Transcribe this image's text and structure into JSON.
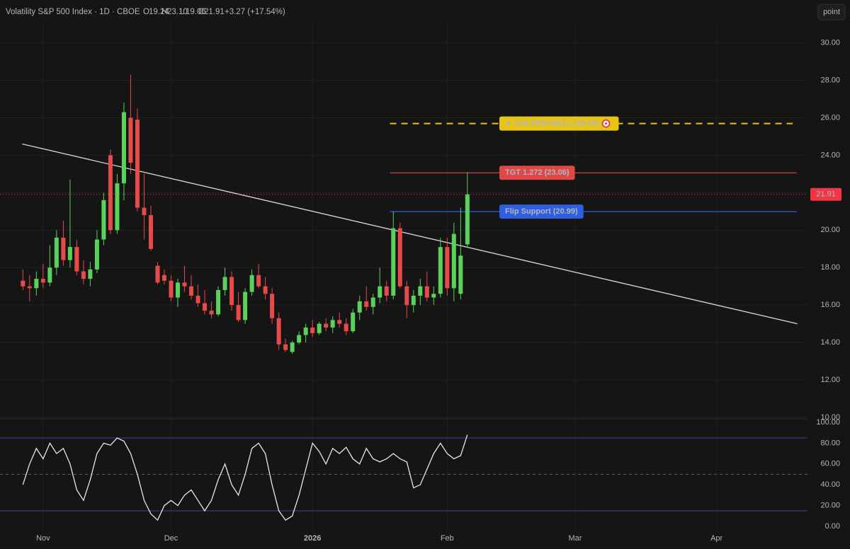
{
  "chart_data": {
    "type": "candlestick",
    "title": "Volatility S&P 500 Index · 1D · CBOE",
    "ohlc_labels": [
      "O",
      "H",
      "L",
      "C"
    ],
    "header_values": [
      "19.24",
      "23.10",
      "19.06",
      "21.91"
    ],
    "change": "+3.27 (+17.54%)",
    "button": "point",
    "up_color": "#5ad15a",
    "down_color": "#e84a4a",
    "candles": [
      [
        -3,
        17.3,
        17.9,
        16.8,
        17.0
      ],
      [
        -2,
        17.0,
        17.6,
        16.2,
        16.9
      ],
      [
        -1,
        16.9,
        17.8,
        16.5,
        17.4
      ],
      [
        0,
        17.4,
        18.2,
        16.9,
        17.2
      ],
      [
        1,
        17.2,
        19.2,
        17.0,
        18.0
      ],
      [
        2,
        18.0,
        20.0,
        17.6,
        19.6
      ],
      [
        3,
        19.6,
        20.5,
        18.1,
        18.4
      ],
      [
        4,
        18.4,
        22.7,
        18.0,
        19.1
      ],
      [
        5,
        19.1,
        19.5,
        17.6,
        17.8
      ],
      [
        6,
        17.8,
        18.4,
        17.1,
        17.4
      ],
      [
        7,
        17.4,
        18.3,
        17.0,
        17.9
      ],
      [
        8,
        17.9,
        20.0,
        17.7,
        19.5
      ],
      [
        9,
        19.5,
        22.0,
        19.2,
        21.6
      ],
      [
        10,
        24.0,
        24.3,
        19.8,
        20.0
      ],
      [
        11,
        20.0,
        23.0,
        19.8,
        22.5
      ],
      [
        12,
        22.5,
        26.8,
        21.6,
        26.3
      ],
      [
        13,
        26.0,
        28.3,
        23.0,
        23.6
      ],
      [
        14,
        25.9,
        26.5,
        21.0,
        21.2
      ],
      [
        15,
        21.2,
        23.0,
        19.5,
        20.8
      ],
      [
        16,
        20.8,
        21.3,
        18.9,
        19.0
      ],
      [
        17,
        18.1,
        18.3,
        17.1,
        17.2
      ],
      [
        18,
        17.6,
        17.9,
        17.1,
        17.3
      ],
      [
        19,
        17.3,
        17.6,
        16.2,
        16.4
      ],
      [
        20,
        16.4,
        17.4,
        15.9,
        17.2
      ],
      [
        21,
        17.2,
        18.1,
        16.7,
        17.0
      ],
      [
        22,
        17.0,
        17.6,
        16.3,
        16.5
      ],
      [
        23,
        16.5,
        17.1,
        15.9,
        16.1
      ],
      [
        24,
        16.1,
        16.8,
        15.5,
        15.7
      ],
      [
        25,
        15.7,
        16.2,
        15.3,
        15.5
      ],
      [
        26,
        15.5,
        17.0,
        15.4,
        16.8
      ],
      [
        27,
        16.8,
        18.0,
        16.5,
        17.5
      ],
      [
        28,
        17.5,
        17.8,
        15.7,
        16.0
      ],
      [
        29,
        16.0,
        16.7,
        15.1,
        15.2
      ],
      [
        30,
        15.2,
        16.9,
        15.0,
        16.7
      ],
      [
        31,
        16.7,
        17.9,
        16.5,
        17.6
      ],
      [
        32,
        17.6,
        18.2,
        16.9,
        17.0
      ],
      [
        33,
        17.0,
        17.5,
        16.3,
        16.6
      ],
      [
        34,
        16.6,
        16.9,
        15.0,
        15.3
      ],
      [
        35,
        15.3,
        15.6,
        13.6,
        13.9
      ],
      [
        36,
        13.9,
        14.2,
        13.5,
        13.6
      ],
      [
        37,
        13.5,
        14.1,
        13.4,
        14.0
      ],
      [
        38,
        14.0,
        14.6,
        13.9,
        14.4
      ],
      [
        39,
        14.4,
        15.0,
        14.0,
        14.8
      ],
      [
        40,
        14.8,
        15.2,
        14.3,
        14.5
      ],
      [
        41,
        14.5,
        15.1,
        14.4,
        15.0
      ],
      [
        42,
        15.0,
        15.3,
        14.6,
        14.8
      ],
      [
        43,
        14.8,
        15.4,
        14.5,
        15.2
      ],
      [
        44,
        15.2,
        15.6,
        14.8,
        15.0
      ],
      [
        45,
        15.0,
        15.3,
        14.4,
        14.6
      ],
      [
        46,
        14.6,
        15.8,
        14.5,
        15.6
      ],
      [
        47,
        15.6,
        16.5,
        15.2,
        16.2
      ],
      [
        48,
        16.2,
        17.0,
        15.7,
        15.9
      ],
      [
        49,
        15.9,
        16.6,
        15.5,
        16.4
      ],
      [
        50,
        16.4,
        18.0,
        16.1,
        17.0
      ],
      [
        51,
        17.0,
        17.3,
        16.2,
        16.5
      ],
      [
        52,
        16.5,
        21.0,
        16.3,
        20.1
      ],
      [
        53,
        20.1,
        20.4,
        16.9,
        17.0
      ],
      [
        54,
        17.0,
        17.3,
        15.3,
        16.0
      ],
      [
        55,
        16.0,
        16.8,
        15.6,
        16.5
      ],
      [
        56,
        16.5,
        17.4,
        16.0,
        17.0
      ],
      [
        57,
        17.0,
        17.8,
        16.2,
        16.4
      ],
      [
        58,
        16.4,
        17.0,
        16.0,
        16.6
      ],
      [
        59,
        16.6,
        19.6,
        16.4,
        19.1
      ],
      [
        60,
        19.1,
        19.6,
        16.5,
        16.9
      ],
      [
        61,
        16.9,
        20.4,
        16.2,
        19.8
      ],
      [
        62,
        16.6,
        21.2,
        16.3,
        18.64
      ],
      [
        63,
        19.24,
        23.1,
        19.06,
        21.91
      ]
    ],
    "xlim": [
      -6.4,
      113.5
    ],
    "xticks": [
      {
        "value": 0,
        "label": "Nov"
      },
      {
        "value": 19,
        "label": "Dec"
      },
      {
        "value": 40,
        "label": "2026"
      },
      {
        "value": 60,
        "label": "Feb"
      },
      {
        "value": 79,
        "label": "Mar"
      },
      {
        "value": 100,
        "label": "Apr"
      }
    ],
    "ylim": [
      10,
      30.4
    ],
    "yticks": [
      {
        "value": 10,
        "label": "10.00"
      },
      {
        "value": 12,
        "label": "12.00"
      },
      {
        "value": 14,
        "label": "14.00"
      },
      {
        "value": 16,
        "label": "16.00"
      },
      {
        "value": 18,
        "label": "18.00"
      },
      {
        "value": 20,
        "label": "20.00"
      },
      {
        "value": 22,
        "label": "22.00"
      },
      {
        "value": 24,
        "label": "24.00"
      },
      {
        "value": 26,
        "label": "26.00"
      },
      {
        "value": 28,
        "label": "28.00"
      },
      {
        "value": 30,
        "label": "30.00"
      }
    ],
    "grid": true,
    "trendline": {
      "color": "#d8d8d8",
      "x": [
        -3.1,
        112
      ],
      "y": [
        24.6,
        15.0
      ]
    },
    "levels": [
      {
        "name": "★ GOLDEN-WALL (25.69)",
        "value": 25.69,
        "color": "#e8c414",
        "text_color": "#2a2200",
        "style": "dashed",
        "x": [
          51.5,
          111.3
        ]
      },
      {
        "name": "TGT 1.272 (23.06)",
        "value": 23.06,
        "color": "#e04848",
        "text_color": "#ffffff",
        "style": "solid",
        "x": [
          51.5,
          111.9
        ]
      },
      {
        "name": "Flip Support (20.99)",
        "value": 20.99,
        "color": "#2f5fe0",
        "text_color": "#ffffff",
        "style": "solid",
        "x": [
          51.5,
          111.9
        ]
      }
    ],
    "last_price": {
      "value": 21.91,
      "color": "#f23645"
    },
    "oscillator": {
      "color": "#e8e8e8",
      "x": [
        -3,
        -2,
        -1,
        0,
        1,
        2,
        3,
        4,
        5,
        6,
        7,
        8,
        9,
        10,
        11,
        12,
        13,
        14,
        15,
        16,
        17,
        18,
        19,
        20,
        21,
        22,
        23,
        24,
        25,
        26,
        27,
        28,
        29,
        30,
        31,
        32,
        33,
        34,
        35,
        36,
        37,
        38,
        39,
        40,
        41,
        42,
        43,
        44,
        45,
        46,
        47,
        48,
        49,
        50,
        51,
        52,
        53,
        54,
        55,
        56,
        57,
        58,
        59,
        60,
        61,
        62,
        63
      ],
      "values": [
        40,
        60,
        75,
        65,
        80,
        70,
        75,
        60,
        35,
        25,
        45,
        70,
        80,
        78,
        85,
        82,
        70,
        50,
        25,
        12,
        6,
        20,
        25,
        20,
        30,
        35,
        25,
        15,
        25,
        45,
        60,
        40,
        30,
        50,
        75,
        80,
        70,
        40,
        15,
        6,
        10,
        30,
        55,
        80,
        72,
        60,
        75,
        70,
        76,
        65,
        60,
        75,
        65,
        62,
        65,
        70,
        65,
        62,
        37,
        40,
        55,
        70,
        80,
        70,
        65,
        68,
        88
      ],
      "ylim": [
        0,
        100
      ],
      "yticks": [
        {
          "value": 0,
          "label": "0.00"
        },
        {
          "value": 20,
          "label": "20.00"
        },
        {
          "value": 40,
          "label": "40.00"
        },
        {
          "value": 60,
          "label": "60.00"
        },
        {
          "value": 80,
          "label": "80.00"
        },
        {
          "value": 100,
          "label": "100.00"
        }
      ],
      "levels": [
        85,
        50,
        15
      ]
    }
  }
}
